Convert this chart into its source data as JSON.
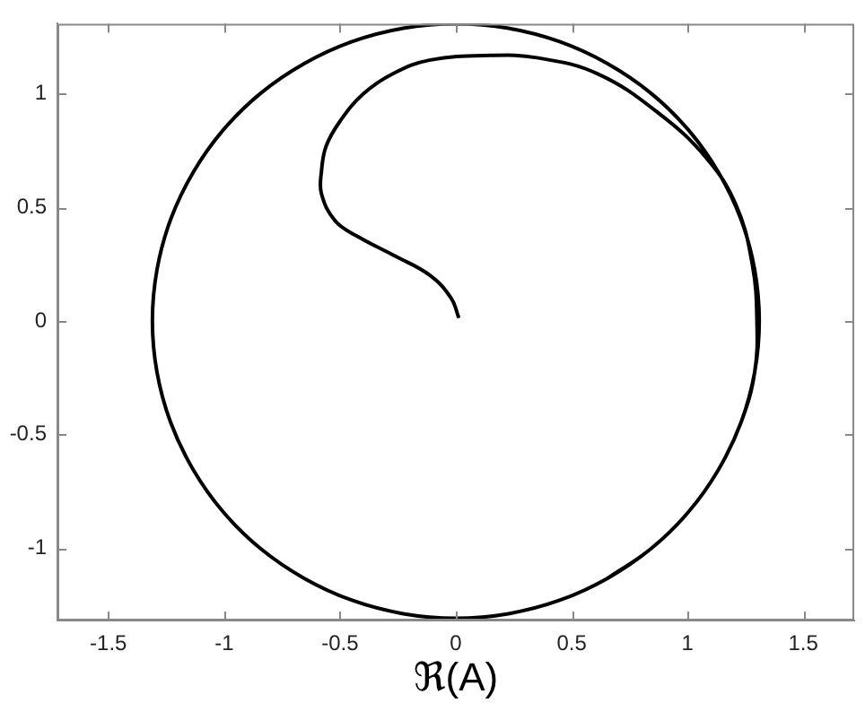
{
  "chart_data": {
    "type": "line",
    "xlabel": "ℜ(A)",
    "xlim": [
      -1.72,
      1.72
    ],
    "ylim": [
      -1.32,
      1.31
    ],
    "xticks": [
      -1.5,
      -1,
      -0.5,
      0,
      0.5,
      1,
      1.5
    ],
    "yticks": [
      -1,
      -0.5,
      0,
      0.5,
      1
    ],
    "grid": false,
    "legend": false,
    "marker": "none",
    "line_style": "solid",
    "series": [
      {
        "color": "#000000",
        "x": [
          0.013,
          -0.02,
          -0.11,
          -0.27,
          -0.42,
          -0.52,
          -0.58,
          -0.58,
          -0.56,
          -0.5,
          -0.4,
          -0.27,
          -0.11,
          0.15,
          0.35,
          0.61,
          0.87,
          1.08,
          1.21,
          1.28,
          1.3,
          1.29,
          1.231,
          1.134,
          1.004,
          0.842,
          0.655,
          0.448,
          0.227,
          0,
          -0.227,
          -0.448,
          -0.655,
          -0.842,
          -1.004,
          -1.134,
          -1.231,
          -1.29,
          -1.31,
          -1.29,
          -1.231,
          -1.134,
          -1.004,
          -0.842,
          -0.655,
          -0.448,
          -0.227,
          0,
          0.227,
          0.448,
          0.655,
          0.842,
          1.004,
          1.134,
          1.231,
          1.29,
          1.31,
          1.29,
          1.231,
          1.134,
          1.004,
          0.842,
          0.655
        ],
        "values": [
          0.013,
          0.1,
          0.2,
          0.29,
          0.37,
          0.44,
          0.56,
          0.66,
          0.77,
          0.88,
          1.0,
          1.09,
          1.15,
          1.17,
          1.16,
          1.09,
          0.92,
          0.72,
          0.51,
          0.25,
          0,
          -0.227,
          -0.448,
          -0.655,
          -0.842,
          -1.004,
          -1.134,
          -1.231,
          -1.29,
          -1.31,
          -1.29,
          -1.231,
          -1.134,
          -1.004,
          -0.842,
          -0.655,
          -0.448,
          -0.227,
          0,
          0.227,
          0.448,
          0.655,
          0.842,
          1.004,
          1.134,
          1.231,
          1.29,
          1.31,
          1.29,
          1.231,
          1.134,
          1.004,
          0.842,
          0.655,
          0.448,
          0.227,
          0,
          -0.227,
          -0.448,
          -0.655,
          -0.842,
          -1.004,
          -1.134
        ]
      }
    ]
  }
}
